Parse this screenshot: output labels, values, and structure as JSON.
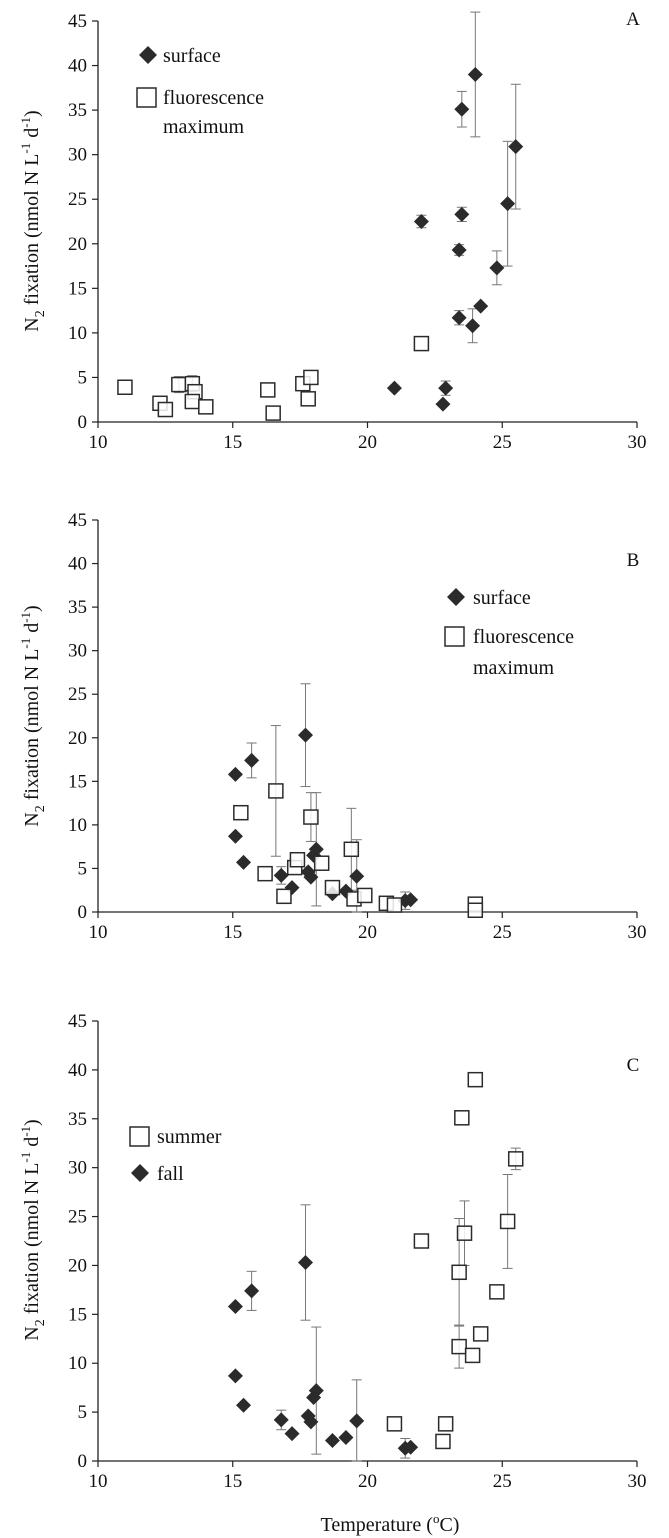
{
  "chart_data": [
    {
      "type": "scatter",
      "panel_letter": "A",
      "xlim": [
        10,
        30
      ],
      "ylim": [
        0,
        45
      ],
      "x_ticks": [
        "10",
        "15",
        "20",
        "25",
        "30"
      ],
      "y_ticks": [
        "0",
        "5",
        "10",
        "15",
        "20",
        "25",
        "30",
        "35",
        "40",
        "45"
      ],
      "ylabel": {
        "n": "N",
        "sub": "2",
        "mid": " fixation (nmol N L",
        "sup1": "-1",
        "d": " d",
        "sup2": "-1",
        "close": ")"
      },
      "xlabel": "",
      "legend_position": "top-left",
      "series": [
        {
          "name": "surface",
          "marker": "filled-diamond",
          "color": "#2b2b2b",
          "points": [
            {
              "x": 21.0,
              "y": 3.8
            },
            {
              "x": 22.9,
              "y": 3.8,
              "err": 0.8
            },
            {
              "x": 22.8,
              "y": 2.0
            },
            {
              "x": 22.0,
              "y": 22.5,
              "err": 0.7
            },
            {
              "x": 23.4,
              "y": 19.3,
              "err": 0.6
            },
            {
              "x": 23.5,
              "y": 23.3,
              "err": 0.8
            },
            {
              "x": 23.5,
              "y": 35.1,
              "err": 2.0
            },
            {
              "x": 24.0,
              "y": 39.0,
              "err": 7.0
            },
            {
              "x": 23.4,
              "y": 11.7,
              "err": 0.8
            },
            {
              "x": 23.9,
              "y": 10.8,
              "err": 1.9
            },
            {
              "x": 24.2,
              "y": 13.0
            },
            {
              "x": 24.8,
              "y": 17.3,
              "err": 1.9
            },
            {
              "x": 25.2,
              "y": 24.5,
              "err": 7.0
            },
            {
              "x": 25.5,
              "y": 30.9,
              "err": 7.0
            }
          ]
        },
        {
          "name": "fluorescence maximum",
          "marker": "open-square",
          "color": "#2b2b2b",
          "points": [
            {
              "x": 11.0,
              "y": 3.9
            },
            {
              "x": 12.3,
              "y": 2.1
            },
            {
              "x": 12.5,
              "y": 1.4
            },
            {
              "x": 13.0,
              "y": 4.2,
              "err": 0.9
            },
            {
              "x": 13.5,
              "y": 4.3,
              "err": 0.9
            },
            {
              "x": 13.6,
              "y": 3.4
            },
            {
              "x": 13.5,
              "y": 2.3
            },
            {
              "x": 14.0,
              "y": 1.7
            },
            {
              "x": 16.3,
              "y": 3.6
            },
            {
              "x": 16.5,
              "y": 1.0
            },
            {
              "x": 17.6,
              "y": 4.3
            },
            {
              "x": 17.9,
              "y": 5.0
            },
            {
              "x": 17.8,
              "y": 2.6
            },
            {
              "x": 22.0,
              "y": 8.8
            }
          ]
        }
      ]
    },
    {
      "type": "scatter",
      "panel_letter": "B",
      "xlim": [
        10,
        30
      ],
      "ylim": [
        0,
        45
      ],
      "x_ticks": [
        "10",
        "15",
        "20",
        "25",
        "30"
      ],
      "y_ticks": [
        "0",
        "5",
        "10",
        "15",
        "20",
        "25",
        "30",
        "35",
        "40",
        "45"
      ],
      "ylabel": {
        "n": "N",
        "sub": "2",
        "mid": " fixation (nmol N L",
        "sup1": "-1",
        "d": " d",
        "sup2": "-1",
        "close": ")"
      },
      "xlabel": "",
      "legend_position": "top-right",
      "series": [
        {
          "name": "surface",
          "marker": "filled-diamond",
          "color": "#2b2b2b",
          "points": [
            {
              "x": 15.1,
              "y": 15.8
            },
            {
              "x": 15.7,
              "y": 17.4,
              "err": 2.0
            },
            {
              "x": 15.1,
              "y": 8.7
            },
            {
              "x": 15.4,
              "y": 5.7
            },
            {
              "x": 16.8,
              "y": 4.2,
              "err": 1.0
            },
            {
              "x": 17.2,
              "y": 2.8
            },
            {
              "x": 17.8,
              "y": 4.6
            },
            {
              "x": 17.9,
              "y": 4.0
            },
            {
              "x": 18.0,
              "y": 6.5
            },
            {
              "x": 18.1,
              "y": 7.2,
              "err": 6.5
            },
            {
              "x": 17.7,
              "y": 20.3,
              "err": 5.9
            },
            {
              "x": 18.7,
              "y": 2.1
            },
            {
              "x": 19.2,
              "y": 2.4
            },
            {
              "x": 19.6,
              "y": 4.1,
              "err": 4.2
            },
            {
              "x": 21.4,
              "y": 1.3,
              "err": 1.0
            },
            {
              "x": 21.6,
              "y": 1.4
            }
          ]
        },
        {
          "name": "fluorescence maximum",
          "marker": "open-square",
          "color": "#2b2b2b",
          "points": [
            {
              "x": 15.3,
              "y": 11.4
            },
            {
              "x": 16.2,
              "y": 4.4
            },
            {
              "x": 16.6,
              "y": 13.9,
              "err": 7.5
            },
            {
              "x": 16.9,
              "y": 1.8
            },
            {
              "x": 17.3,
              "y": 5.1
            },
            {
              "x": 17.4,
              "y": 6.0
            },
            {
              "x": 17.9,
              "y": 10.9,
              "err": 2.8
            },
            {
              "x": 18.3,
              "y": 5.6
            },
            {
              "x": 18.7,
              "y": 2.8
            },
            {
              "x": 19.4,
              "y": 7.2,
              "err": 4.7
            },
            {
              "x": 19.5,
              "y": 1.5
            },
            {
              "x": 19.9,
              "y": 1.9
            },
            {
              "x": 20.7,
              "y": 1.0
            },
            {
              "x": 21.0,
              "y": 0.8
            },
            {
              "x": 24.0,
              "y": 0.9
            },
            {
              "x": 24.0,
              "y": 0.2
            }
          ]
        }
      ]
    },
    {
      "type": "scatter",
      "panel_letter": "C",
      "xlim": [
        10,
        30
      ],
      "ylim": [
        0,
        45
      ],
      "x_ticks": [
        "10",
        "15",
        "20",
        "25",
        "30"
      ],
      "y_ticks": [
        "0",
        "5",
        "10",
        "15",
        "20",
        "25",
        "30",
        "35",
        "40",
        "45"
      ],
      "ylabel": {
        "n": "N",
        "sub": "2",
        "mid": " fixation (nmol N L",
        "sup1": "-1",
        "d": " d",
        "sup2": "-1",
        "close": ")"
      },
      "xlabel": {
        "base": "Temperature (",
        "sup": "o",
        "unit": "C)"
      },
      "legend_position": "top-left",
      "series": [
        {
          "name": "summer",
          "marker": "open-square",
          "color": "#2b2b2b",
          "points": [
            {
              "x": 21.0,
              "y": 3.8
            },
            {
              "x": 22.9,
              "y": 3.8
            },
            {
              "x": 22.8,
              "y": 2.0
            },
            {
              "x": 22.0,
              "y": 22.5
            },
            {
              "x": 23.4,
              "y": 19.3,
              "err": 5.5
            },
            {
              "x": 23.6,
              "y": 23.3,
              "err": 3.3
            },
            {
              "x": 23.5,
              "y": 35.1
            },
            {
              "x": 24.0,
              "y": 39.0
            },
            {
              "x": 23.4,
              "y": 11.7,
              "err": 2.2
            },
            {
              "x": 23.9,
              "y": 10.8
            },
            {
              "x": 24.2,
              "y": 13.0
            },
            {
              "x": 24.8,
              "y": 17.3
            },
            {
              "x": 25.2,
              "y": 24.5,
              "err": 4.8
            },
            {
              "x": 25.5,
              "y": 30.9,
              "err": 1.1
            }
          ]
        },
        {
          "name": "fall",
          "marker": "filled-diamond",
          "color": "#2b2b2b",
          "points": [
            {
              "x": 15.1,
              "y": 15.8
            },
            {
              "x": 15.7,
              "y": 17.4,
              "err": 2.0
            },
            {
              "x": 15.1,
              "y": 8.7
            },
            {
              "x": 15.4,
              "y": 5.7
            },
            {
              "x": 16.8,
              "y": 4.2,
              "err": 1.0
            },
            {
              "x": 17.2,
              "y": 2.8
            },
            {
              "x": 17.8,
              "y": 4.6
            },
            {
              "x": 17.9,
              "y": 4.0
            },
            {
              "x": 18.0,
              "y": 6.5
            },
            {
              "x": 18.1,
              "y": 7.2,
              "err": 6.5
            },
            {
              "x": 17.7,
              "y": 20.3,
              "err": 5.9
            },
            {
              "x": 18.7,
              "y": 2.1
            },
            {
              "x": 19.2,
              "y": 2.4
            },
            {
              "x": 19.6,
              "y": 4.1,
              "err": 4.2
            },
            {
              "x": 21.4,
              "y": 1.3,
              "err": 1.0
            },
            {
              "x": 21.6,
              "y": 1.4
            }
          ]
        }
      ]
    }
  ]
}
